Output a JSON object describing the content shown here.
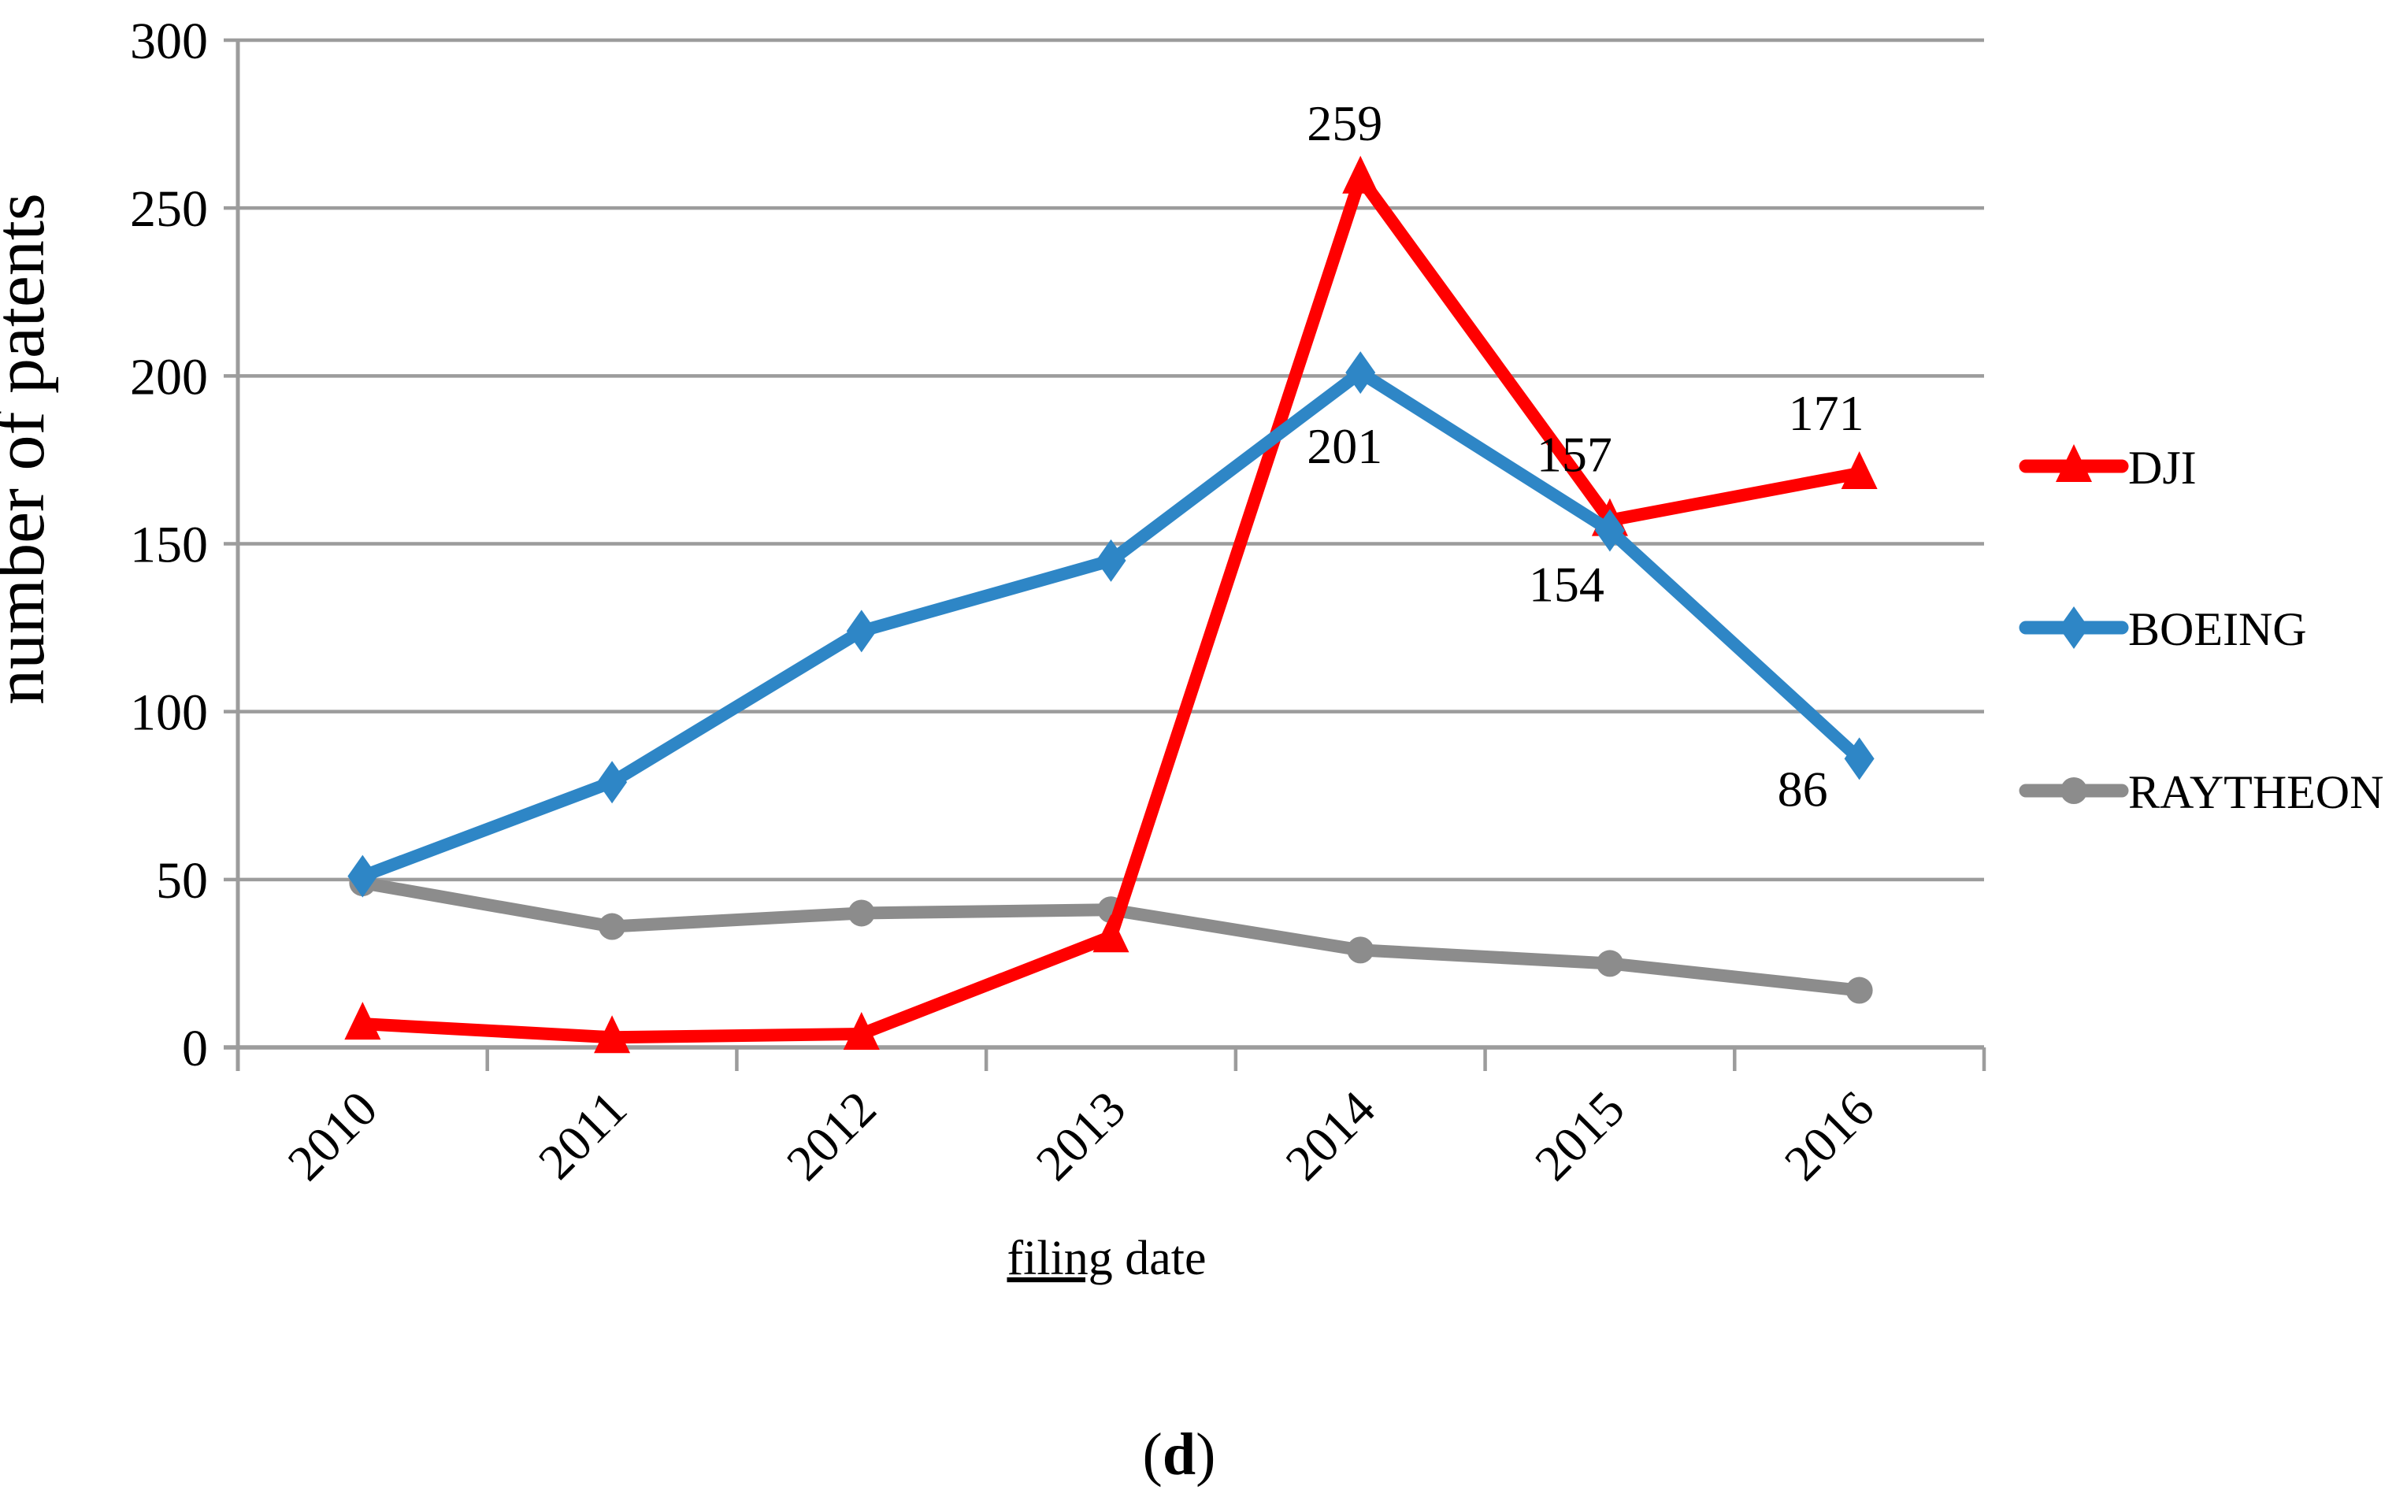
{
  "figure": {
    "caption": "(d)"
  },
  "chart_data": {
    "type": "line",
    "title": "",
    "xlabel": "filing date",
    "ylabel": "number of patents",
    "caption": "(d)",
    "categories": [
      "2010",
      "2011",
      "2012",
      "2013",
      "2014",
      "2015",
      "2016"
    ],
    "ylim": [
      0,
      300
    ],
    "yticks": [
      0,
      50,
      100,
      150,
      200,
      250,
      300
    ],
    "grid": "horizontal gridlines every 50, gray",
    "legend_position": "right",
    "series": [
      {
        "name": "DJI",
        "color": "#FF0000",
        "marker": "triangle",
        "values": [
          7,
          3,
          4,
          33,
          259,
          157,
          171
        ],
        "point_labels": [
          null,
          null,
          null,
          null,
          "259",
          "157",
          "171"
        ]
      },
      {
        "name": "BOEING",
        "color": "#2E86C6",
        "marker": "diamond",
        "values": [
          51,
          79,
          124,
          145,
          201,
          154,
          86
        ],
        "point_labels": [
          null,
          null,
          null,
          null,
          "201",
          "154",
          "86"
        ]
      },
      {
        "name": "RAYTHEON",
        "color": "#8C8C8C",
        "marker": "circle",
        "values": [
          49,
          36,
          40,
          41,
          29,
          25,
          17
        ],
        "point_labels": [
          null,
          null,
          null,
          null,
          null,
          null,
          null
        ]
      }
    ],
    "colors": {
      "grid": "#9C9C9C",
      "axis": "#9C9C9C",
      "text": "#000000"
    }
  }
}
